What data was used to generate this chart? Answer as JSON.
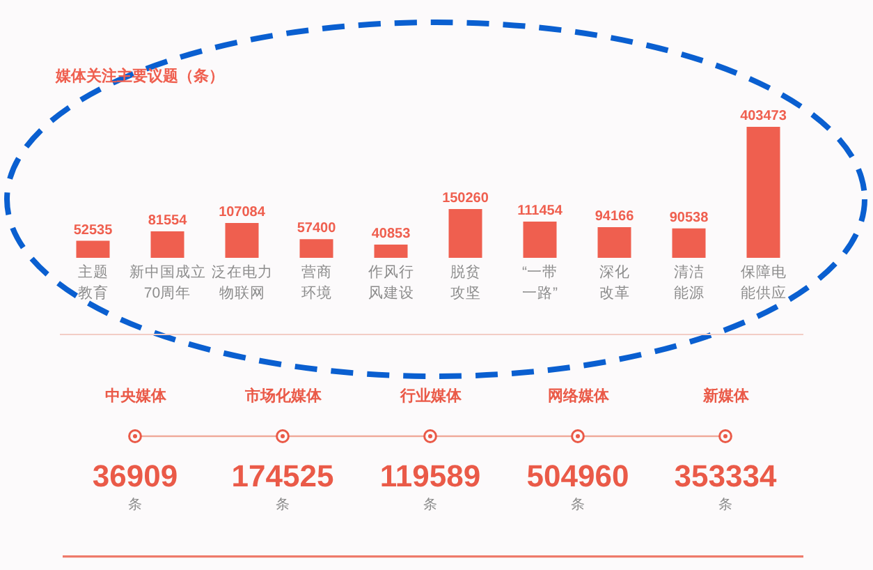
{
  "chart_data": [
    {
      "type": "bar",
      "title": "媒体关注主要议题（条）",
      "categories": [
        "主题教育",
        "新中国成立70周年",
        "泛在电力物联网",
        "营商环境",
        "作风行风建设",
        "脱贫攻坚",
        "“一带一路”",
        "深化改革",
        "清洁能源",
        "保障电能供应"
      ],
      "values": [
        52535,
        81554,
        107084,
        57400,
        40853,
        150260,
        111454,
        94166,
        90538,
        403473
      ],
      "color": "#ef5f4f",
      "data_labels": true
    },
    {
      "type": "other",
      "categories": [
        "中央媒体",
        "市场化媒体",
        "行业媒体",
        "网络媒体",
        "新媒体"
      ],
      "values": [
        36909,
        174525,
        119589,
        504960,
        353334
      ],
      "color": "#ea5a48",
      "data_labels": true,
      "annotations": [
        {
          "text": "条",
          "x": "中央媒体"
        },
        {
          "text": "条",
          "x": "市场化媒体"
        },
        {
          "text": "条",
          "x": "行业媒体"
        },
        {
          "text": "条",
          "x": "网络媒体"
        },
        {
          "text": "条",
          "x": "新媒体"
        }
      ]
    }
  ]
}
